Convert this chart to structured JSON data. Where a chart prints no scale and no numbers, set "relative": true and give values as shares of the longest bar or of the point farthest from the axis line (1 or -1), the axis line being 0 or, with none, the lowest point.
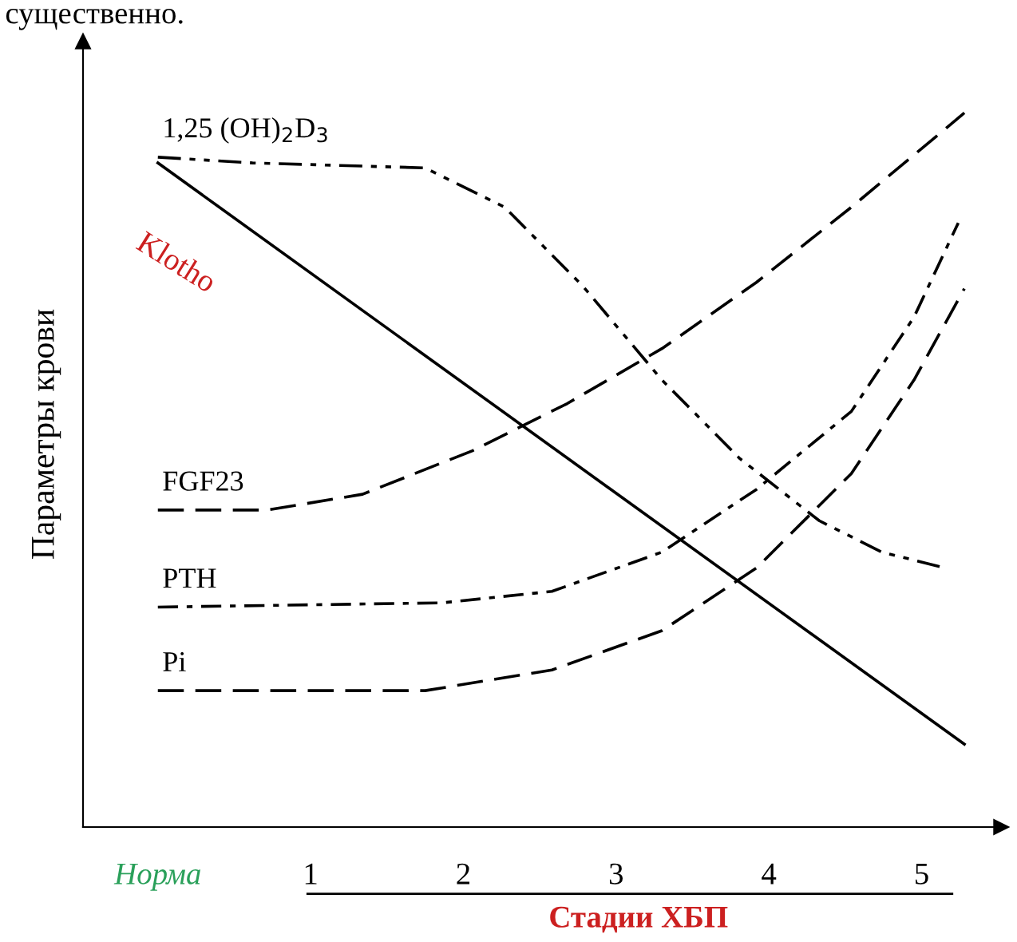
{
  "chart_data": {
    "type": "line",
    "relative": true,
    "xlabel": "Стадии ХБП",
    "ylabel": "Параметры крови",
    "annotations": [
      "существенно."
    ],
    "xlim": [
      -0.49,
      5.52
    ],
    "xticks": [
      {
        "value": 0,
        "label": "Норма"
      },
      1,
      2,
      3,
      4,
      5
    ],
    "tick_labels": "x",
    "grid": false,
    "legend": false,
    "marker": "none",
    "series": [
      {
        "name": "1,25 (OH)$_{2}$D$_{3}$",
        "color": "#000000",
        "line_style": "dashdotdot",
        "x": [
          0,
          0.62,
          1.75,
          2.27,
          2.78,
          3.3,
          3.81,
          4.33,
          4.74,
          5.15
        ],
        "values": [
          0.938,
          0.93,
          0.923,
          0.868,
          0.758,
          0.626,
          0.516,
          0.429,
          0.385,
          0.363
        ]
      },
      {
        "name": "Klotho",
        "color": "#000000",
        "line_style": "solid",
        "x": [
          0,
          5.28
        ],
        "values": [
          0.93,
          0.116
        ]
      },
      {
        "name": "FGF23",
        "color": "#000000",
        "line_style": "dashed",
        "x": [
          0,
          0.72,
          1.34,
          2.06,
          2.68,
          3.3,
          3.92,
          4.54,
          5.28
        ],
        "values": [
          0.444,
          0.444,
          0.466,
          0.527,
          0.593,
          0.67,
          0.763,
          0.868,
          1.0
        ]
      },
      {
        "name": "PTH",
        "color": "#000000",
        "line_style": "dashdot",
        "x": [
          0,
          1.86,
          2.58,
          3.3,
          3.92,
          4.54,
          4.95,
          5.24
        ],
        "values": [
          0.308,
          0.314,
          0.33,
          0.385,
          0.473,
          0.582,
          0.714,
          0.846
        ]
      },
      {
        "name": "Pi",
        "color": "#000000",
        "line_style": "dashed",
        "x": [
          0,
          1.75,
          2.58,
          3.3,
          3.92,
          4.54,
          4.95,
          5.28
        ],
        "values": [
          0.191,
          0.191,
          0.22,
          0.275,
          0.363,
          0.495,
          0.626,
          0.754
        ]
      }
    ]
  }
}
